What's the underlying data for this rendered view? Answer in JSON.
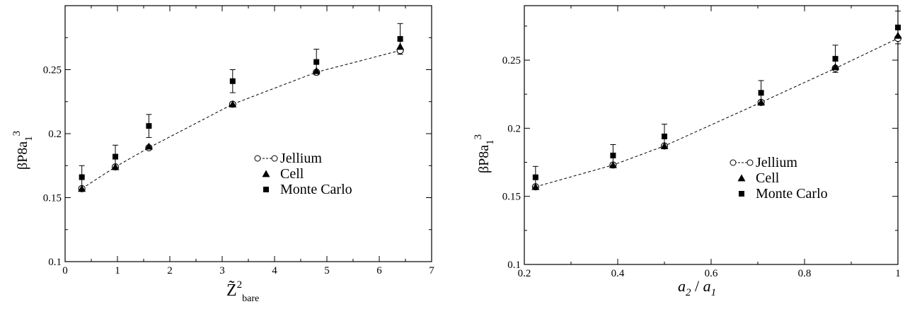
{
  "chart_data": [
    {
      "type": "scatter",
      "ylabel": {
        "main": "βP8a",
        "sub": "1",
        "sup": "3"
      },
      "xlabel": {
        "main": "Z̃",
        "sup": "2",
        "sub": "bare"
      },
      "xlim": [
        0,
        7
      ],
      "ylim": [
        0.1,
        0.3
      ],
      "xticks": [
        "0",
        "1",
        "2",
        "3",
        "4",
        "5",
        "6",
        "7"
      ],
      "yticks": [
        "0.1",
        "0.15",
        "0.2",
        "0.25"
      ],
      "xtick_values": [
        0,
        1,
        2,
        3,
        4,
        5,
        6,
        7
      ],
      "ytick_values": [
        0.1,
        0.15,
        0.2,
        0.25
      ],
      "legend_position": "center-right",
      "series": [
        {
          "name": "Jellium",
          "marker": "open-circle",
          "line": "dashed",
          "x": [
            0.32,
            0.96,
            1.6,
            3.2,
            4.8,
            6.4
          ],
          "y": [
            0.157,
            0.174,
            0.189,
            0.223,
            0.248,
            0.265
          ]
        },
        {
          "name": "Cell",
          "marker": "filled-triangle",
          "x": [
            0.32,
            0.96,
            1.6,
            3.2,
            4.8,
            6.4
          ],
          "y": [
            0.157,
            0.174,
            0.19,
            0.223,
            0.249,
            0.268
          ]
        },
        {
          "name": "Monte Carlo",
          "marker": "filled-square",
          "x": [
            0.32,
            0.96,
            1.6,
            3.2,
            4.8,
            6.4
          ],
          "y": [
            0.166,
            0.182,
            0.206,
            0.241,
            0.256,
            0.274
          ],
          "err": [
            0.009,
            0.009,
            0.009,
            0.009,
            0.01,
            0.012
          ]
        }
      ]
    },
    {
      "type": "scatter",
      "ylabel": {
        "main": "βP8a",
        "sub": "1",
        "sup": "3"
      },
      "xlabel": {
        "a": "a",
        "a_sub": "2",
        "slash": " / ",
        "b": "a",
        "b_sub": "1"
      },
      "xlim": [
        0.2,
        1.0
      ],
      "ylim": [
        0.1,
        0.29
      ],
      "xticks": [
        "0.2",
        "0.4",
        "0.6",
        "0.8",
        "1"
      ],
      "yticks": [
        "0.1",
        "0.15",
        "0.2",
        "0.25"
      ],
      "xtick_values": [
        0.2,
        0.4,
        0.6,
        0.8,
        1.0
      ],
      "ytick_values": [
        0.1,
        0.15,
        0.2,
        0.25
      ],
      "legend_position": "center-right",
      "series": [
        {
          "name": "Jellium",
          "marker": "open-circle",
          "line": "dashed",
          "x": [
            0.224,
            0.39,
            0.5,
            0.707,
            0.866,
            1.0
          ],
          "y": [
            0.157,
            0.173,
            0.187,
            0.219,
            0.244,
            0.266
          ]
        },
        {
          "name": "Cell",
          "marker": "filled-triangle",
          "x": [
            0.224,
            0.39,
            0.5,
            0.707,
            0.866,
            1.0
          ],
          "y": [
            0.157,
            0.173,
            0.187,
            0.219,
            0.245,
            0.268
          ]
        },
        {
          "name": "Monte Carlo",
          "marker": "filled-square",
          "x": [
            0.224,
            0.39,
            0.5,
            0.707,
            0.866,
            1.0
          ],
          "y": [
            0.164,
            0.18,
            0.194,
            0.226,
            0.251,
            0.274
          ],
          "err": [
            0.008,
            0.008,
            0.009,
            0.009,
            0.01,
            0.012
          ]
        }
      ]
    }
  ]
}
